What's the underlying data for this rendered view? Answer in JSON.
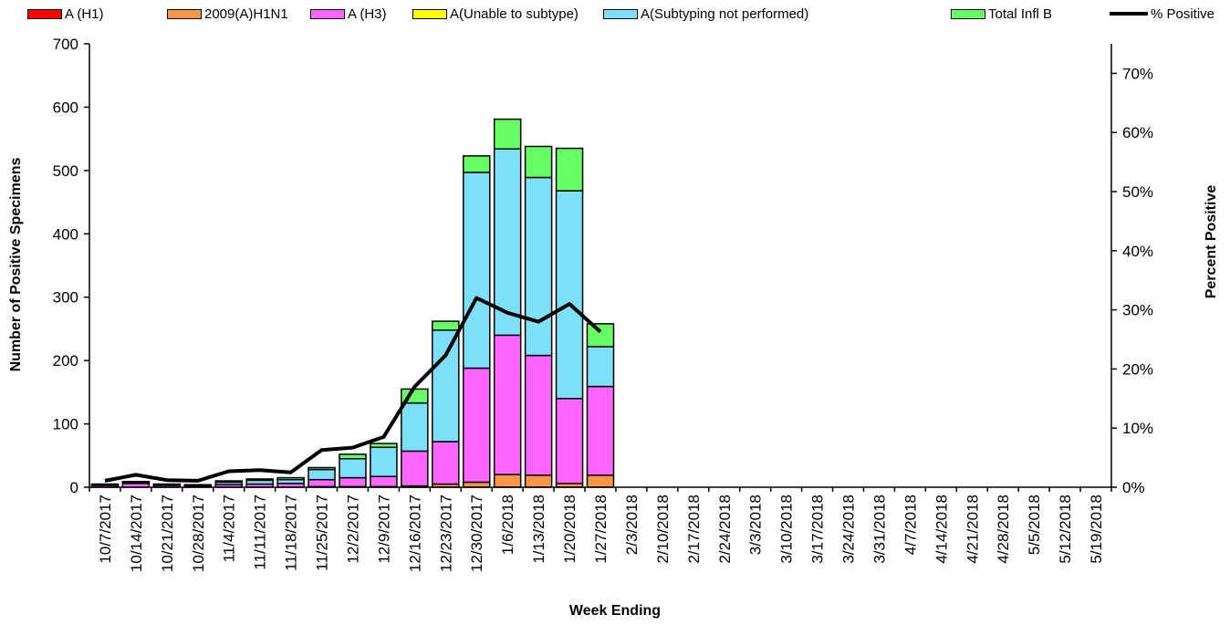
{
  "legend": [
    {
      "label": "A (H1)",
      "color": "#ff0000",
      "kind": "box"
    },
    {
      "label": "2009(A)H1N1",
      "color": "#f79646",
      "kind": "box"
    },
    {
      "label": "A (H3)",
      "color": "#ff66ff",
      "kind": "box"
    },
    {
      "label": "A(Unable to subtype)",
      "color": "#ffff00",
      "kind": "box"
    },
    {
      "label": "A(Subtyping not performed)",
      "color": "#7ee0f8",
      "kind": "box"
    },
    {
      "label": "Total Infl B",
      "color": "#66ff66",
      "kind": "box"
    },
    {
      "label": "% Positive",
      "color": "#000000",
      "kind": "line"
    }
  ],
  "chart_data": {
    "type": "bar",
    "stacked": true,
    "xlabel": "Week Ending",
    "ylabel": "Number of  Positive Specimens",
    "y2label": "Percent Positive",
    "ylim": [
      0,
      700
    ],
    "y_ticks": [
      0,
      100,
      200,
      300,
      400,
      500,
      600,
      700
    ],
    "y2lim": [
      0,
      0.75
    ],
    "y2_ticks": [
      "0%",
      "10%",
      "20%",
      "30%",
      "40%",
      "50%",
      "60%",
      "70%"
    ],
    "legend_position": "top",
    "categories": [
      "10/7/2017",
      "10/14/2017",
      "10/21/2017",
      "10/28/2017",
      "11/4/2017",
      "11/11/2017",
      "11/18/2017",
      "11/25/2017",
      "12/2/2017",
      "12/9/2017",
      "12/16/2017",
      "12/23/2017",
      "12/30/2017",
      "1/6/2018",
      "1/13/2018",
      "1/20/2018",
      "1/27/2018",
      "2/3/2018",
      "2/10/2018",
      "2/17/2018",
      "2/24/2018",
      "3/3/2018",
      "3/10/2018",
      "3/17/2018",
      "3/24/2018",
      "3/31/2018",
      "4/7/2018",
      "4/14/2018",
      "4/21/2018",
      "4/28/2018",
      "5/5/2018",
      "5/12/2018",
      "5/19/2018"
    ],
    "series": [
      {
        "name": "A (H1)",
        "color": "#ff0000",
        "values": [
          0,
          0,
          0,
          0,
          0,
          0,
          0,
          0,
          0,
          0,
          0,
          0,
          0,
          0,
          0,
          0,
          0,
          0,
          0,
          0,
          0,
          0,
          0,
          0,
          0,
          0,
          0,
          0,
          0,
          0,
          0,
          0,
          0
        ]
      },
      {
        "name": "2009(A)H1N1",
        "color": "#f79646",
        "values": [
          0,
          0,
          0,
          0,
          0,
          0,
          0,
          1,
          1,
          1,
          2,
          5,
          8,
          20,
          19,
          6,
          19,
          0,
          0,
          0,
          0,
          0,
          0,
          0,
          0,
          0,
          0,
          0,
          0,
          0,
          0,
          0,
          0
        ]
      },
      {
        "name": "A (H3)",
        "color": "#ff66ff",
        "values": [
          3,
          6,
          3,
          2,
          4,
          5,
          6,
          11,
          14,
          16,
          55,
          67,
          180,
          220,
          189,
          134,
          140,
          0,
          0,
          0,
          0,
          0,
          0,
          0,
          0,
          0,
          0,
          0,
          0,
          0,
          0,
          0,
          0
        ]
      },
      {
        "name": "A(Unable to subtype)",
        "color": "#ffff00",
        "values": [
          0,
          0,
          0,
          0,
          0,
          0,
          0,
          0,
          0,
          0,
          0,
          0,
          0,
          0,
          0,
          0,
          0,
          0,
          0,
          0,
          0,
          0,
          0,
          0,
          0,
          0,
          0,
          0,
          0,
          0,
          0,
          0,
          0
        ]
      },
      {
        "name": "A(Subtyping not performed)",
        "color": "#7ee0f8",
        "values": [
          1,
          2,
          1,
          1,
          4,
          6,
          6,
          16,
          30,
          46,
          76,
          176,
          309,
          294,
          281,
          328,
          63,
          0,
          0,
          0,
          0,
          0,
          0,
          0,
          0,
          0,
          0,
          0,
          0,
          0,
          0,
          0,
          0
        ]
      },
      {
        "name": "Total Infl B",
        "color": "#66ff66",
        "values": [
          1,
          1,
          1,
          1,
          2,
          2,
          3,
          3,
          7,
          6,
          22,
          14,
          26,
          47,
          49,
          67,
          36,
          0,
          0,
          0,
          0,
          0,
          0,
          0,
          0,
          0,
          0,
          0,
          0,
          0,
          0,
          0,
          0
        ]
      }
    ],
    "line_series": {
      "name": "% Positive",
      "color": "#000000",
      "values": [
        0.011,
        0.021,
        0.012,
        0.011,
        0.027,
        0.029,
        0.025,
        0.063,
        0.067,
        0.085,
        0.17,
        0.223,
        0.32,
        0.295,
        0.28,
        0.31,
        0.263
      ]
    }
  }
}
